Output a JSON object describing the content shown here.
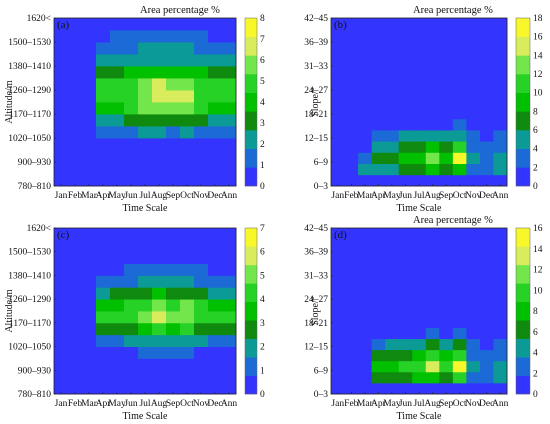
{
  "colors": [
    "#3434ff",
    "#1b6ad6",
    "#0c9a96",
    "#0f8a0f",
    "#00c000",
    "#27d227",
    "#72e64a",
    "#d8ec5c",
    "#f7f72a",
    "#ffffff"
  ],
  "chart_data": [
    {
      "type": "heatmap",
      "panel_label": "(a)",
      "title": "Area percentage %",
      "xlabel": "Time Scale",
      "ylabel": "Altitude/m",
      "x": [
        "Jan",
        "Feb",
        "Mar",
        "Apr",
        "May",
        "Jun",
        "Jul",
        "Aug",
        "Sep",
        "Oct",
        "Nov",
        "Dec",
        "Ann"
      ],
      "y_ticks": [
        "780–810",
        "900–930",
        "1020–1050",
        "1170–1170",
        "1260–1290",
        "1380–1410",
        "1500–1530",
        "1620<"
      ],
      "colorbar": {
        "min": 0,
        "max": 8,
        "ticks": [
          0,
          1,
          2,
          3,
          4,
          5,
          6,
          7,
          8
        ]
      },
      "rows": 14,
      "profiles": [
        [
          0.1,
          0.1,
          0.1,
          0.1,
          0.1,
          0.1,
          0.1,
          0.1,
          0.1,
          0.1,
          0.1,
          0.1,
          0.1,
          0.1
        ],
        [
          0.1,
          0.1,
          0.1,
          0.1,
          0.1,
          0.1,
          0.1,
          0.1,
          0.1,
          0.1,
          0.1,
          0.1,
          0.1,
          0.1
        ],
        [
          0.1,
          0.1,
          0.1,
          0.1,
          0.1,
          0.1,
          0.1,
          0.1,
          0.1,
          0.1,
          0.1,
          0.1,
          0.1,
          0.1
        ],
        [
          0.1,
          0.1,
          0.2,
          0.5,
          1.2,
          2.5,
          4.2,
          4.8,
          4.6,
          3.2,
          2.2,
          1.6,
          0.8,
          0.2
        ],
        [
          0.1,
          0.1,
          0.2,
          0.5,
          1.3,
          2.6,
          4.4,
          5.0,
          4.7,
          3.3,
          2.2,
          1.6,
          0.9,
          0.2
        ],
        [
          0.1,
          0.1,
          0.2,
          0.6,
          1.5,
          2.8,
          4.8,
          5.3,
          5.0,
          3.6,
          2.3,
          1.7,
          1.0,
          0.2
        ],
        [
          0.1,
          0.1,
          0.2,
          0.7,
          1.8,
          3.2,
          5.5,
          6.2,
          5.7,
          4.0,
          2.5,
          1.8,
          1.1,
          0.2
        ],
        [
          0.1,
          0.1,
          0.2,
          0.7,
          1.8,
          3.3,
          6.2,
          7.1,
          6.4,
          4.4,
          2.6,
          1.9,
          1.1,
          0.2
        ],
        [
          0.1,
          0.1,
          0.2,
          0.6,
          1.7,
          3.1,
          5.6,
          6.3,
          5.8,
          4.0,
          2.5,
          1.8,
          1.0,
          0.2
        ],
        [
          0.1,
          0.1,
          0.2,
          0.7,
          1.8,
          3.4,
          6.0,
          6.6,
          6.1,
          4.2,
          2.6,
          1.8,
          1.0,
          0.2
        ],
        [
          0.1,
          0.1,
          0.2,
          0.6,
          1.5,
          2.8,
          4.8,
          5.3,
          5.0,
          3.6,
          2.3,
          1.7,
          1.0,
          0.2
        ],
        [
          0.1,
          0.1,
          0.2,
          0.5,
          1.2,
          2.5,
          4.2,
          4.8,
          4.6,
          3.2,
          2.2,
          1.6,
          0.8,
          0.2
        ],
        [
          0.1,
          0.1,
          0.2,
          0.5,
          1.2,
          2.5,
          4.2,
          4.8,
          4.6,
          3.2,
          2.2,
          1.6,
          0.8,
          0.2
        ]
      ]
    },
    {
      "type": "heatmap",
      "panel_label": "(b)",
      "title": "Area percentage %",
      "xlabel": "Time Scale",
      "ylabel": "Slope/°",
      "x": [
        "Jan",
        "Feb",
        "Mar",
        "Apr",
        "May",
        "Jun",
        "Jul",
        "Aug",
        "Sep",
        "Oct",
        "Nov",
        "Dec",
        "Ann"
      ],
      "y_ticks": [
        "0–3",
        "6–9",
        "12–15",
        "18–21",
        "24–27",
        "31–33",
        "36–39",
        "42–45"
      ],
      "colorbar": {
        "min": 0,
        "max": 18,
        "ticks": [
          0,
          2,
          4,
          6,
          8,
          10,
          12,
          14,
          16,
          18
        ]
      },
      "rows": 15,
      "profiles": [
        [
          0.3,
          0.3,
          0.3,
          0.3,
          0.3,
          0.3,
          0.3,
          0.3,
          0.3,
          0.3,
          0.3,
          0.3,
          0.3,
          0.3,
          0.3
        ],
        [
          0.3,
          0.3,
          0.3,
          0.3,
          0.3,
          0.3,
          0.3,
          0.3,
          0.3,
          0.3,
          0.3,
          0.3,
          0.3,
          0.3,
          0.3
        ],
        [
          0.5,
          4.0,
          3.0,
          1.5,
          0.5,
          0.3,
          0.3,
          0.3,
          0.3,
          0.3,
          0.3,
          0.3,
          0.3,
          0.3,
          0.3
        ],
        [
          0.6,
          5.0,
          7.0,
          5.0,
          3.0,
          1.2,
          0.3,
          0.3,
          0.3,
          0.3,
          0.3,
          0.3,
          0.3,
          0.3,
          0.3
        ],
        [
          0.6,
          5.5,
          7.5,
          5.5,
          3.5,
          1.4,
          0.3,
          0.3,
          0.3,
          0.3,
          0.3,
          0.3,
          0.3,
          0.3,
          0.3
        ],
        [
          0.6,
          6.0,
          8.5,
          6.5,
          4.0,
          1.6,
          0.3,
          0.3,
          0.3,
          0.3,
          0.3,
          0.3,
          0.3,
          0.3,
          0.3
        ],
        [
          0.6,
          6.5,
          9.5,
          7.5,
          4.5,
          1.7,
          0.3,
          0.3,
          0.3,
          0.3,
          0.3,
          0.3,
          0.3,
          0.3,
          0.3
        ],
        [
          0.6,
          8.0,
          12.0,
          9.0,
          5.0,
          1.8,
          0.3,
          0.3,
          0.3,
          0.3,
          0.3,
          0.3,
          0.3,
          0.3,
          0.3
        ],
        [
          0.6,
          6.0,
          8.0,
          7.0,
          4.0,
          1.5,
          0.3,
          0.3,
          0.3,
          0.3,
          0.3,
          0.3,
          0.3,
          0.3,
          0.3
        ],
        [
          0.6,
          9.0,
          17.5,
          11.0,
          5.5,
          2.0,
          0.3,
          0.3,
          0.3,
          0.3,
          0.3,
          0.3,
          0.3,
          0.3,
          0.3
        ],
        [
          0.6,
          3.0,
          4.0,
          3.0,
          2.0,
          1.0,
          0.3,
          0.3,
          0.3,
          0.3,
          0.3,
          0.3,
          0.3,
          0.3,
          0.3
        ],
        [
          0.5,
          2.0,
          3.0,
          2.0,
          1.5,
          0.8,
          0.3,
          0.3,
          0.3,
          0.3,
          0.3,
          0.3,
          0.3,
          0.3,
          0.3
        ],
        [
          0.5,
          4.0,
          5.0,
          3.5,
          2.5,
          1.0,
          0.3,
          0.3,
          0.3,
          0.3,
          0.3,
          0.3,
          0.3,
          0.3,
          0.3
        ]
      ]
    },
    {
      "type": "heatmap",
      "panel_label": "(c)",
      "title": "",
      "xlabel": "Time Scale",
      "ylabel": "Altitude/m",
      "x": [
        "Jan",
        "Feb",
        "Mar",
        "Apr",
        "May",
        "Jun",
        "Jul",
        "Aug",
        "Sep",
        "Oct",
        "Nov",
        "Dec",
        "Ann"
      ],
      "y_ticks": [
        "780–810",
        "900–930",
        "1020–1050",
        "1170–1170",
        "1260–1290",
        "1380–1410",
        "1500–1530",
        "1620<"
      ],
      "colorbar": {
        "min": 0,
        "max": 7,
        "ticks": [
          0,
          1,
          2,
          3,
          4,
          5,
          6,
          7
        ]
      },
      "rows": 14,
      "profiles": [
        [
          0.1,
          0.1,
          0.1,
          0.1,
          0.1,
          0.1,
          0.1,
          0.1,
          0.1,
          0.1,
          0.1,
          0.1,
          0.1,
          0.1
        ],
        [
          0.1,
          0.1,
          0.1,
          0.1,
          0.1,
          0.1,
          0.1,
          0.1,
          0.1,
          0.1,
          0.1,
          0.1,
          0.1,
          0.1
        ],
        [
          0.1,
          0.1,
          0.1,
          0.1,
          0.1,
          0.1,
          0.1,
          0.1,
          0.1,
          0.1,
          0.1,
          0.1,
          0.1,
          0.1
        ],
        [
          0.1,
          0.1,
          0.2,
          0.6,
          1.3,
          2.8,
          4.0,
          3.6,
          2.3,
          1.4,
          0.7,
          0.2,
          0.1,
          0.1
        ],
        [
          0.1,
          0.1,
          0.2,
          0.6,
          1.4,
          2.9,
          4.1,
          3.7,
          2.4,
          1.4,
          0.7,
          0.2,
          0.1,
          0.1
        ],
        [
          0.1,
          0.1,
          0.2,
          0.7,
          1.6,
          3.1,
          4.3,
          3.9,
          2.6,
          1.5,
          0.8,
          0.2,
          0.1,
          0.1
        ],
        [
          0.1,
          0.1,
          0.2,
          0.8,
          1.8,
          3.5,
          4.8,
          4.3,
          2.9,
          1.6,
          0.8,
          0.2,
          0.1,
          0.1
        ],
        [
          0.1,
          0.1,
          0.2,
          0.9,
          2.0,
          3.9,
          5.6,
          5.0,
          3.2,
          1.7,
          0.9,
          0.2,
          0.1,
          0.1
        ],
        [
          0.1,
          0.1,
          0.2,
          0.8,
          1.8,
          3.4,
          4.7,
          4.2,
          2.8,
          1.6,
          0.8,
          0.2,
          0.1,
          0.1
        ],
        [
          0.1,
          0.1,
          0.2,
          0.9,
          2.1,
          4.0,
          5.4,
          4.8,
          3.1,
          1.7,
          0.9,
          0.2,
          0.1,
          0.1
        ],
        [
          0.1,
          0.1,
          0.2,
          0.7,
          1.6,
          3.1,
          4.3,
          3.9,
          2.6,
          1.5,
          0.8,
          0.2,
          0.1,
          0.1
        ],
        [
          0.1,
          0.1,
          0.2,
          0.6,
          1.3,
          2.8,
          4.0,
          3.6,
          2.3,
          1.4,
          0.7,
          0.2,
          0.1,
          0.1
        ],
        [
          0.1,
          0.1,
          0.2,
          0.6,
          1.3,
          2.8,
          4.0,
          3.6,
          2.3,
          1.4,
          0.7,
          0.2,
          0.1,
          0.1
        ]
      ]
    },
    {
      "type": "heatmap",
      "panel_label": "(d)",
      "title": "Area percentage %",
      "xlabel": "Time Scale",
      "ylabel": "Slope/°",
      "x": [
        "Jan",
        "Feb",
        "Mar",
        "Apr",
        "May",
        "Jun",
        "Jul",
        "Aug",
        "Sep",
        "Oct",
        "Nov",
        "Dec",
        "Ann"
      ],
      "y_ticks": [
        "0–3",
        "6–9",
        "12–15",
        "18–21",
        "24–27",
        "31–33",
        "36–39",
        "42–45"
      ],
      "colorbar": {
        "min": 0,
        "max": 16,
        "ticks": [
          0,
          2,
          4,
          6,
          8,
          10,
          12,
          14,
          16
        ]
      },
      "rows": 15,
      "profiles": [
        [
          0.3,
          0.3,
          0.3,
          0.3,
          0.3,
          0.3,
          0.3,
          0.3,
          0.3,
          0.3,
          0.3,
          0.3,
          0.3,
          0.3,
          0.3
        ],
        [
          0.5,
          1.5,
          1.0,
          0.5,
          0.3,
          0.3,
          0.3,
          0.3,
          0.3,
          0.3,
          0.3,
          0.3,
          0.3,
          0.3,
          0.3
        ],
        [
          0.5,
          1.0,
          0.8,
          0.5,
          0.3,
          0.3,
          0.3,
          0.3,
          0.3,
          0.3,
          0.3,
          0.3,
          0.3,
          0.3,
          0.3
        ],
        [
          0.6,
          6.0,
          8.0,
          6.0,
          3.5,
          1.2,
          0.3,
          0.3,
          0.3,
          0.3,
          0.3,
          0.3,
          0.3,
          0.3,
          0.3
        ],
        [
          0.6,
          6.5,
          8.5,
          6.5,
          4.0,
          1.4,
          0.3,
          0.3,
          0.3,
          0.3,
          0.3,
          0.3,
          0.3,
          0.3,
          0.3
        ],
        [
          0.6,
          7.0,
          9.0,
          7.0,
          4.5,
          1.5,
          0.3,
          0.3,
          0.3,
          0.3,
          0.3,
          0.3,
          0.3,
          0.3,
          0.3
        ],
        [
          0.6,
          7.5,
          10.0,
          7.5,
          5.0,
          1.6,
          0.3,
          0.3,
          0.3,
          0.3,
          0.3,
          0.3,
          0.3,
          0.3,
          0.3
        ],
        [
          0.6,
          8.5,
          12.5,
          9.0,
          5.5,
          1.8,
          0.3,
          0.3,
          0.3,
          0.3,
          0.3,
          0.3,
          0.3,
          0.3,
          0.3
        ],
        [
          0.6,
          7.0,
          10.0,
          7.5,
          4.5,
          1.6,
          0.3,
          0.3,
          0.3,
          0.3,
          0.3,
          0.3,
          0.3,
          0.3,
          0.3
        ],
        [
          0.6,
          9.5,
          15.5,
          10.5,
          6.0,
          2.0,
          0.3,
          0.3,
          0.3,
          0.3,
          0.3,
          0.3,
          0.3,
          0.3,
          0.3
        ],
        [
          0.6,
          3.0,
          4.0,
          3.0,
          2.0,
          1.0,
          0.3,
          0.3,
          0.3,
          0.3,
          0.3,
          0.3,
          0.3,
          0.3,
          0.3
        ],
        [
          0.5,
          2.0,
          3.0,
          2.0,
          1.5,
          0.8,
          0.3,
          0.3,
          0.3,
          0.3,
          0.3,
          0.3,
          0.3,
          0.3,
          0.3
        ],
        [
          0.5,
          4.0,
          5.0,
          3.5,
          2.5,
          1.0,
          0.3,
          0.3,
          0.3,
          0.3,
          0.3,
          0.3,
          0.3,
          0.3,
          0.3
        ]
      ]
    }
  ]
}
